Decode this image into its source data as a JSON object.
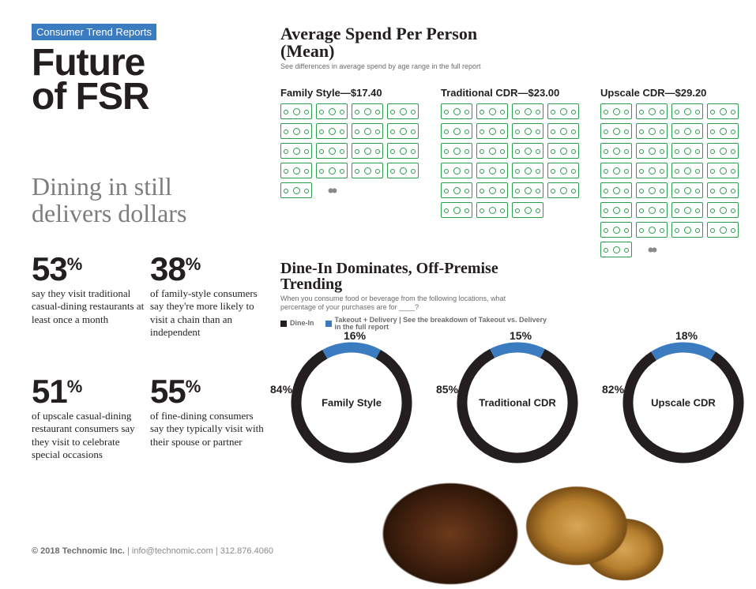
{
  "badge": "Consumer Trend Reports",
  "title_line1": "Future",
  "title_line2": "of FSR",
  "subhead": "Dining in still delivers dollars",
  "stats": [
    {
      "num": "53",
      "pct": "%",
      "desc": "say they visit traditional casual-dining restaurants at least once a month"
    },
    {
      "num": "38",
      "pct": "%",
      "desc": "of family-style consumers say they're more likely to visit a chain than an independent"
    },
    {
      "num": "51",
      "pct": "%",
      "desc": "of upscale casual-dining restaurant consumers say they visit to celebrate special occasions"
    },
    {
      "num": "55",
      "pct": "%",
      "desc": "of fine-dining consumers say they typically visit with their spouse or partner"
    }
  ],
  "spend": {
    "title": "Average Spend Per Person (Mean)",
    "sub": "See differences in average spend by age range in the full report",
    "bill_color": "#2e9b4f",
    "cols": [
      {
        "label": "Family Style—$17.40",
        "bills": 17,
        "coins": true
      },
      {
        "label": "Traditional CDR—$23.00",
        "bills": 23,
        "coins": false
      },
      {
        "label": "Upscale CDR—$29.20",
        "bills": 29,
        "coins": true
      }
    ]
  },
  "donuts": {
    "title": "Dine-In Dominates, Off-Premise Trending",
    "sub": "When you consume food or beverage from the following locations, what percentage of your purchases are for ____?",
    "legend_dine": "Dine-In",
    "legend_take": "Takeout + Delivery | See the breakdown of Takeout vs. Delivery in the full report",
    "color_dine": "#231f20",
    "color_take": "#3b7bbf",
    "items": [
      {
        "label": "Family Style",
        "dine": 84,
        "take": 16
      },
      {
        "label": "Traditional CDR",
        "dine": 85,
        "take": 15
      },
      {
        "label": "Upscale CDR",
        "dine": 82,
        "take": 18
      }
    ]
  },
  "footer_company": "© 2018 Technomic Inc.",
  "footer_contact": " | info@technomic.com | 312.876.4060"
}
